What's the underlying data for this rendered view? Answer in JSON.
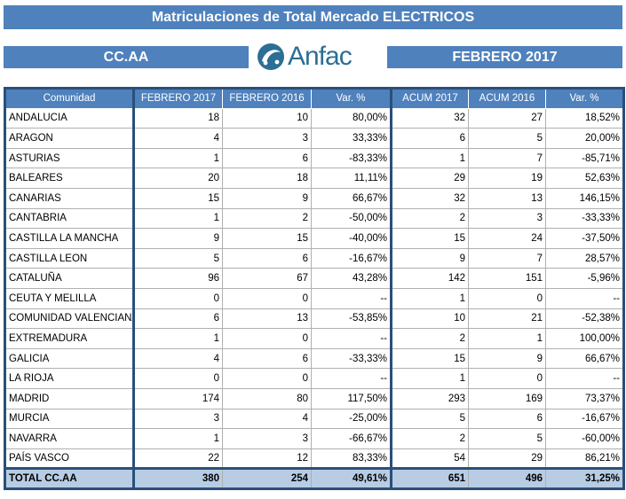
{
  "title": "Matriculaciones de Total Mercado ELECTRICOS",
  "left_header": "CC.AA",
  "right_header": "FEBRERO 2017",
  "logo": {
    "text": "Anfac",
    "icon": "anfac-logo-icon",
    "color": "#2c6f95"
  },
  "columns": [
    "Comunidad",
    "FEBRERO  2017",
    "FEBRERO  2016",
    "Var. %",
    "ACUM 2017",
    "ACUM 2016",
    "Var. %"
  ],
  "rows": [
    [
      "ANDALUCIA",
      "18",
      "10",
      "80,00%",
      "32",
      "27",
      "18,52%"
    ],
    [
      "ARAGON",
      "4",
      "3",
      "33,33%",
      "6",
      "5",
      "20,00%"
    ],
    [
      "ASTURIAS",
      "1",
      "6",
      "-83,33%",
      "1",
      "7",
      "-85,71%"
    ],
    [
      "BALEARES",
      "20",
      "18",
      "11,11%",
      "29",
      "19",
      "52,63%"
    ],
    [
      "CANARIAS",
      "15",
      "9",
      "66,67%",
      "32",
      "13",
      "146,15%"
    ],
    [
      "CANTABRIA",
      "1",
      "2",
      "-50,00%",
      "2",
      "3",
      "-33,33%"
    ],
    [
      "CASTILLA LA MANCHA",
      "9",
      "15",
      "-40,00%",
      "15",
      "24",
      "-37,50%"
    ],
    [
      "CASTILLA LEON",
      "5",
      "6",
      "-16,67%",
      "9",
      "7",
      "28,57%"
    ],
    [
      "CATALUÑA",
      "96",
      "67",
      "43,28%",
      "142",
      "151",
      "-5,96%"
    ],
    [
      "CEUTA Y MELILLA",
      "0",
      "0",
      "--",
      "1",
      "0",
      "--"
    ],
    [
      "COMUNIDAD VALENCIANA",
      "6",
      "13",
      "-53,85%",
      "10",
      "21",
      "-52,38%"
    ],
    [
      "EXTREMADURA",
      "1",
      "0",
      "--",
      "2",
      "1",
      "100,00%"
    ],
    [
      "GALICIA",
      "4",
      "6",
      "-33,33%",
      "15",
      "9",
      "66,67%"
    ],
    [
      "LA RIOJA",
      "0",
      "0",
      "--",
      "1",
      "0",
      "--"
    ],
    [
      "MADRID",
      "174",
      "80",
      "117,50%",
      "293",
      "169",
      "73,37%"
    ],
    [
      "MURCIA",
      "3",
      "4",
      "-25,00%",
      "5",
      "6",
      "-16,67%"
    ],
    [
      "NAVARRA",
      "1",
      "3",
      "-66,67%",
      "2",
      "5",
      "-60,00%"
    ],
    [
      "PAÍS VASCO",
      "22",
      "12",
      "83,33%",
      "54",
      "29",
      "86,21%"
    ]
  ],
  "total": [
    "TOTAL CC.AA",
    "380",
    "254",
    "49,61%",
    "651",
    "496",
    "31,25%"
  ]
}
